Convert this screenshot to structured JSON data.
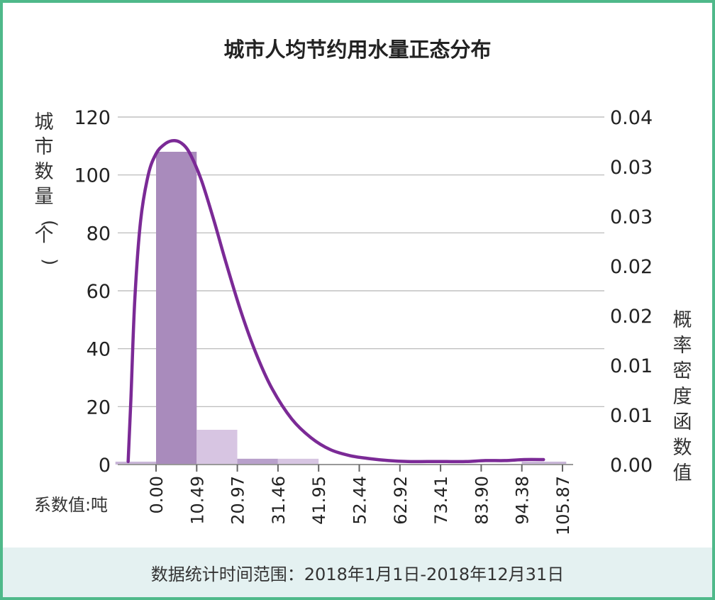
{
  "chart_data": {
    "type": "bar",
    "title": "城市人均节约用水量正态分布",
    "ylabel_left": "城市数量(个)",
    "ylabel_right": "概率密度函数值",
    "xlabel": "系数值:吨",
    "x_ticks": [
      "0.00",
      "10.49",
      "20.97",
      "31.46",
      "41.95",
      "52.44",
      "62.92",
      "73.41",
      "83.90",
      "94.38",
      "105.87"
    ],
    "y_left_ticks": [
      "0",
      "20",
      "40",
      "60",
      "80",
      "100",
      "120"
    ],
    "y_right_ticks": [
      "0.00",
      "0.01",
      "0.01",
      "0.02",
      "0.02",
      "0.03",
      "0.03",
      "0.04"
    ],
    "ylim_left": [
      0,
      120
    ],
    "ylim_right": [
      0,
      0.035
    ],
    "grid": true,
    "bars": [
      {
        "x0": -10.49,
        "x1": 0.0,
        "value": 1,
        "color": "#c9b6d8"
      },
      {
        "x0": 0.0,
        "x1": 10.49,
        "value": 108,
        "color": "#a98bbc"
      },
      {
        "x0": 10.49,
        "x1": 20.97,
        "value": 12,
        "color": "#d7c5e2"
      },
      {
        "x0": 20.97,
        "x1": 31.46,
        "value": 2,
        "color": "#b8a0cb"
      },
      {
        "x0": 31.46,
        "x1": 41.95,
        "value": 2,
        "color": "#d7c5e2"
      },
      {
        "x0": 94.38,
        "x1": 105.87,
        "value": 1,
        "color": "#c9b6d8"
      }
    ],
    "density_curve": {
      "color": "#7b2a96",
      "x": [
        -7.2,
        -6.5,
        -5.5,
        -4.0,
        -2.0,
        0.0,
        2.0,
        4.0,
        6.0,
        8.0,
        10.0,
        12.0,
        15.0,
        18.0,
        22.0,
        26.0,
        30.0,
        35.0,
        40.0,
        45.0,
        50.0,
        55.0,
        60.0,
        65.0,
        70.0,
        75.0,
        80.0,
        85.0,
        90.0,
        95.0,
        100.0
      ],
      "y": [
        0.0003,
        0.0065,
        0.0165,
        0.0245,
        0.0292,
        0.0313,
        0.0322,
        0.0326,
        0.0325,
        0.0318,
        0.0303,
        0.0283,
        0.0245,
        0.0204,
        0.0153,
        0.011,
        0.0076,
        0.0046,
        0.0027,
        0.0015,
        0.0009,
        0.0006,
        0.0004,
        0.0003,
        0.0003,
        0.0003,
        0.0003,
        0.0004,
        0.0004,
        0.0005,
        0.0005
      ]
    }
  },
  "footer": {
    "text": "数据统计时间范围：2018年1月1日-2018年12月31日"
  }
}
